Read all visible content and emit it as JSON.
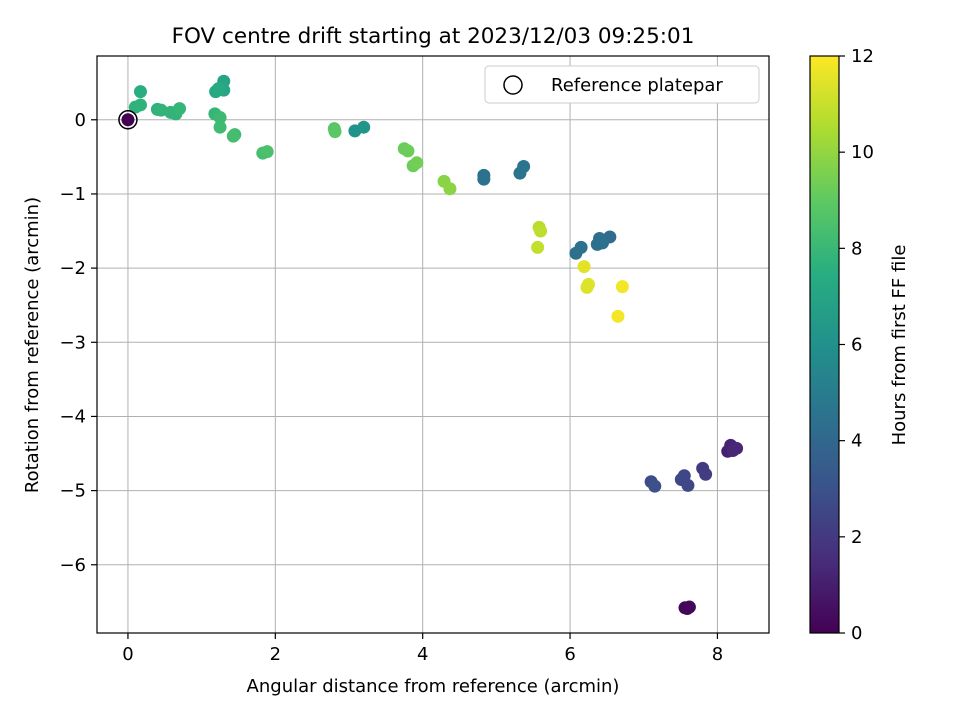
{
  "chart_data": {
    "type": "scatter",
    "title": "FOV centre drift starting at 2023/12/03 09:25:01",
    "xlabel": "Angular distance from reference (arcmin)",
    "ylabel": "Rotation from reference (arcmin)",
    "xlim": [
      -0.42,
      8.7
    ],
    "ylim": [
      -6.92,
      0.86
    ],
    "xticks": [
      0,
      2,
      4,
      6,
      8
    ],
    "xtick_labels": [
      "0",
      "2",
      "4",
      "6",
      "8"
    ],
    "yticks": [
      0,
      -1,
      -2,
      -3,
      -4,
      -5,
      -6
    ],
    "ytick_labels": [
      "0",
      "−1",
      "−2",
      "−3",
      "−4",
      "−5",
      "−6"
    ],
    "grid": true,
    "legend": {
      "position": "top-right",
      "entries": [
        "Reference platepar"
      ]
    },
    "colorbar": {
      "label": "Hours from first FF file",
      "min": 0,
      "max": 12,
      "ticks": [
        0,
        2,
        4,
        6,
        8,
        10,
        12
      ],
      "tick_labels": [
        "0",
        "2",
        "4",
        "6",
        "8",
        "10",
        "12"
      ],
      "colormap": "viridis"
    },
    "reference_point": {
      "x": 0,
      "y": 0,
      "color": "#440154"
    },
    "points": [
      {
        "x": 7.56,
        "y": -6.58,
        "h": 0.2
      },
      {
        "x": 7.62,
        "y": -6.57,
        "h": 0.3
      },
      {
        "x": 7.59,
        "y": -6.59,
        "h": 0.2
      },
      {
        "x": 8.14,
        "y": -4.47,
        "h": 1.1
      },
      {
        "x": 8.18,
        "y": -4.39,
        "h": 1.2
      },
      {
        "x": 8.26,
        "y": -4.43,
        "h": 1.3
      },
      {
        "x": 8.21,
        "y": -4.46,
        "h": 1.3
      },
      {
        "x": 7.8,
        "y": -4.7,
        "h": 2.0
      },
      {
        "x": 7.84,
        "y": -4.78,
        "h": 2.1
      },
      {
        "x": 7.55,
        "y": -4.8,
        "h": 2.5
      },
      {
        "x": 7.51,
        "y": -4.85,
        "h": 2.6
      },
      {
        "x": 7.6,
        "y": -4.93,
        "h": 2.6
      },
      {
        "x": 7.1,
        "y": -4.88,
        "h": 2.8
      },
      {
        "x": 7.15,
        "y": -4.94,
        "h": 2.9
      },
      {
        "x": 6.54,
        "y": -1.58,
        "h": 4.2
      },
      {
        "x": 6.4,
        "y": -1.6,
        "h": 4.3
      },
      {
        "x": 6.44,
        "y": -1.66,
        "h": 4.4
      },
      {
        "x": 6.37,
        "y": -1.68,
        "h": 4.4
      },
      {
        "x": 6.08,
        "y": -1.8,
        "h": 4.4
      },
      {
        "x": 6.15,
        "y": -1.72,
        "h": 4.5
      },
      {
        "x": 4.83,
        "y": -0.75,
        "h": 4.5
      },
      {
        "x": 4.83,
        "y": -0.8,
        "h": 4.5
      },
      {
        "x": 5.32,
        "y": -0.72,
        "h": 4.6
      },
      {
        "x": 5.37,
        "y": -0.63,
        "h": 4.6
      },
      {
        "x": 3.08,
        "y": -0.15,
        "h": 6.1
      },
      {
        "x": 3.2,
        "y": -0.1,
        "h": 6.2
      },
      {
        "x": 1.3,
        "y": 0.52,
        "h": 7.0
      },
      {
        "x": 1.3,
        "y": 0.4,
        "h": 7.1
      },
      {
        "x": 1.19,
        "y": 0.38,
        "h": 7.2
      },
      {
        "x": 1.23,
        "y": 0.42,
        "h": 7.3
      },
      {
        "x": 0.17,
        "y": 0.38,
        "h": 7.5
      },
      {
        "x": 0.1,
        "y": 0.17,
        "h": 7.7
      },
      {
        "x": 0.17,
        "y": 0.2,
        "h": 7.7
      },
      {
        "x": 0.4,
        "y": 0.14,
        "h": 7.7
      },
      {
        "x": 0.45,
        "y": 0.13,
        "h": 7.8
      },
      {
        "x": 0.58,
        "y": 0.1,
        "h": 7.8
      },
      {
        "x": 0.65,
        "y": 0.08,
        "h": 7.8
      },
      {
        "x": 0.7,
        "y": 0.15,
        "h": 7.9
      },
      {
        "x": 1.18,
        "y": 0.08,
        "h": 7.9
      },
      {
        "x": 1.25,
        "y": 0.03,
        "h": 8.1
      },
      {
        "x": 1.25,
        "y": -0.1,
        "h": 8.2
      },
      {
        "x": 1.45,
        "y": -0.2,
        "h": 8.2
      },
      {
        "x": 1.43,
        "y": -0.22,
        "h": 8.3
      },
      {
        "x": 1.83,
        "y": -0.45,
        "h": 8.4
      },
      {
        "x": 1.89,
        "y": -0.43,
        "h": 8.5
      },
      {
        "x": 2.8,
        "y": -0.12,
        "h": 8.8
      },
      {
        "x": 2.81,
        "y": -0.16,
        "h": 8.9
      },
      {
        "x": 3.75,
        "y": -0.39,
        "h": 9.2
      },
      {
        "x": 3.8,
        "y": -0.42,
        "h": 9.3
      },
      {
        "x": 3.87,
        "y": -0.62,
        "h": 9.3
      },
      {
        "x": 3.92,
        "y": -0.58,
        "h": 9.4
      },
      {
        "x": 4.29,
        "y": -0.83,
        "h": 9.8
      },
      {
        "x": 4.37,
        "y": -0.93,
        "h": 9.9
      },
      {
        "x": 5.58,
        "y": -1.45,
        "h": 10.7
      },
      {
        "x": 5.6,
        "y": -1.5,
        "h": 10.8
      },
      {
        "x": 5.56,
        "y": -1.72,
        "h": 10.9
      },
      {
        "x": 6.19,
        "y": -1.98,
        "h": 11.5
      },
      {
        "x": 6.25,
        "y": -2.22,
        "h": 11.4
      },
      {
        "x": 6.23,
        "y": -2.26,
        "h": 11.4
      },
      {
        "x": 6.71,
        "y": -2.25,
        "h": 11.8
      },
      {
        "x": 6.65,
        "y": -2.65,
        "h": 11.8
      }
    ]
  }
}
